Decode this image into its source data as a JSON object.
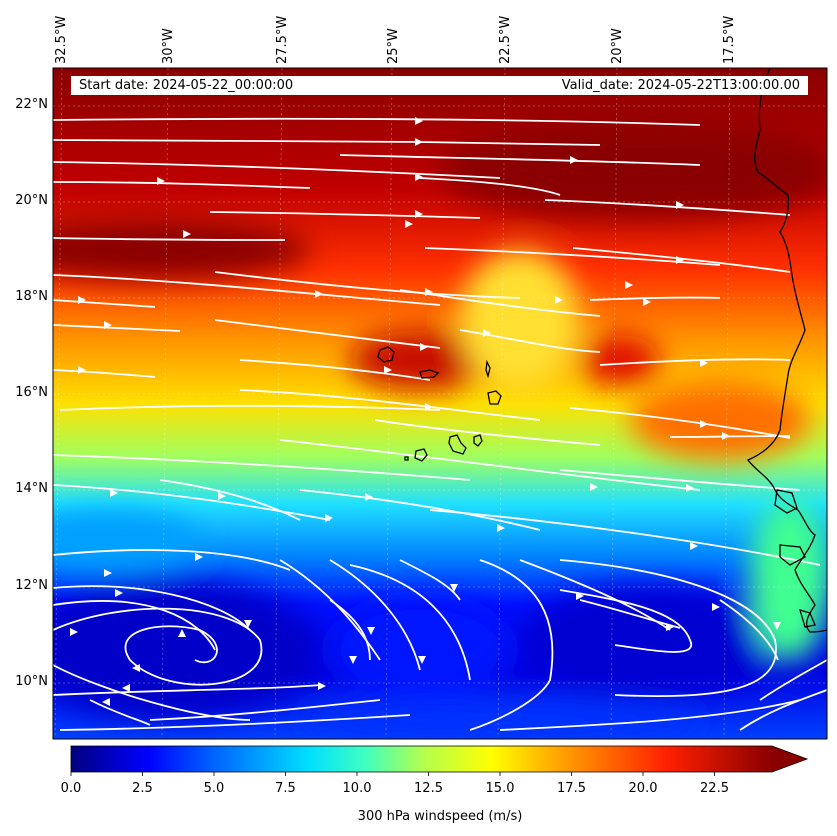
{
  "map": {
    "lon_labels": [
      "32.5°W",
      "30°W",
      "27.5°W",
      "25°W",
      "22.5°W",
      "20°W",
      "17.5°W"
    ],
    "lat_labels": [
      "22°N",
      "20°N",
      "18°N",
      "16°N",
      "14°N",
      "12°N",
      "10°N"
    ],
    "start_date": "Start date: 2024-05-22_00:00:00",
    "valid_date": "Valid_date: 2024-05-22T13:00:00.00",
    "colormap": "jet",
    "streamline_color": "#ffffff",
    "coastline_color": "#000000"
  },
  "colorbar": {
    "label": "300 hPa windspeed (m/s)",
    "ticks": [
      "0.0",
      "2.5",
      "5.0",
      "7.5",
      "10.0",
      "12.5",
      "15.0",
      "17.5",
      "20.0",
      "22.5"
    ],
    "range": [
      0,
      25
    ],
    "extend": "max"
  }
}
